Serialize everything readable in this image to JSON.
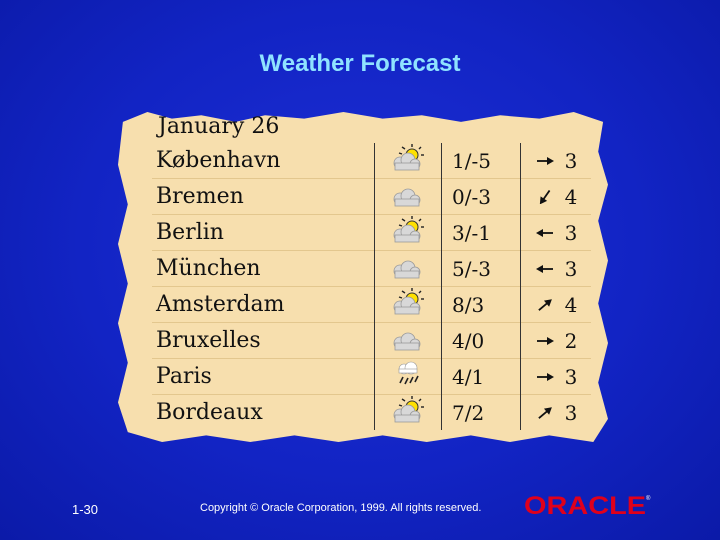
{
  "slide": {
    "title": "Weather Forecast",
    "date": "January 26",
    "rows": [
      {
        "city": "København",
        "icon": "sun-cloud-icon",
        "temp": "1/-5",
        "wind_dir": "right",
        "wind": "3"
      },
      {
        "city": "Bremen",
        "icon": "cloud-icon",
        "temp": "0/-3",
        "wind_dir": "down-left",
        "wind": "4"
      },
      {
        "city": "Berlin",
        "icon": "sun-cloud-icon",
        "temp": "3/-1",
        "wind_dir": "left",
        "wind": "3"
      },
      {
        "city": "München",
        "icon": "cloud-icon",
        "temp": "5/-3",
        "wind_dir": "left",
        "wind": "3"
      },
      {
        "city": "Amsterdam",
        "icon": "sun-cloud-icon",
        "temp": "8/3",
        "wind_dir": "up-right",
        "wind": "4"
      },
      {
        "city": "Bruxelles",
        "icon": "cloud-icon",
        "temp": "4/0",
        "wind_dir": "right",
        "wind": "2"
      },
      {
        "city": "Paris",
        "icon": "rain-icon",
        "temp": "4/1",
        "wind_dir": "right",
        "wind": "3"
      },
      {
        "city": "Bordeaux",
        "icon": "sun-cloud-icon",
        "temp": "7/2",
        "wind_dir": "up-right",
        "wind": "3"
      }
    ]
  },
  "footer": {
    "slide_number": "1-30",
    "copyright": "Copyright © Oracle Corporation, 1999. All rights reserved."
  },
  "logo": {
    "text": "ORACLE",
    "color": "#e0001b"
  }
}
